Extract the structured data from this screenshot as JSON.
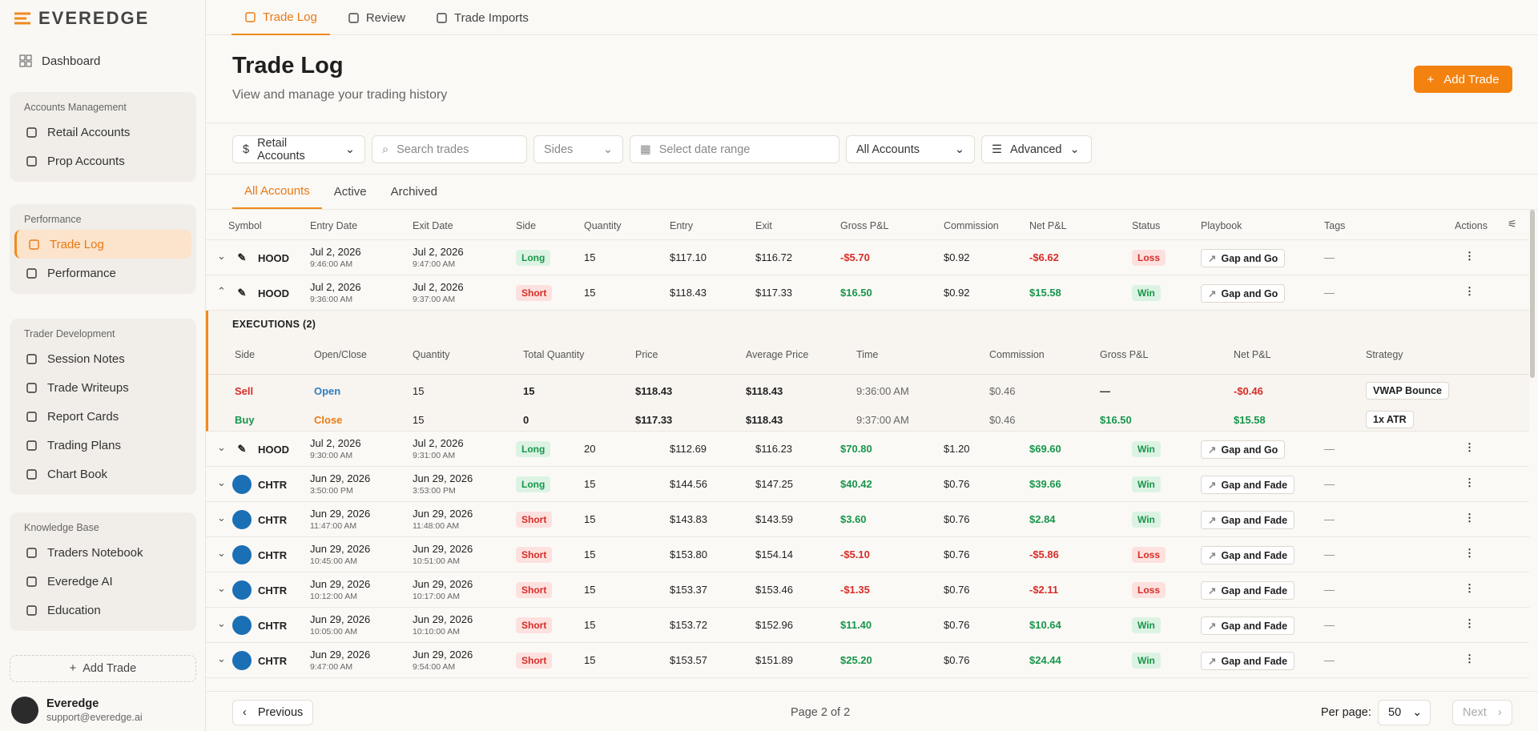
{
  "sidebar": {
    "logo": "EVEREDGE",
    "dashboard": "Dashboard",
    "groups": [
      {
        "title": "Accounts Management",
        "items": [
          "Retail Accounts",
          "Prop Accounts"
        ]
      },
      {
        "title": "Performance",
        "items": [
          "Trade Log",
          "Performance"
        ]
      },
      {
        "title": "Trader Development",
        "items": [
          "Session Notes",
          "Trade Writeups",
          "Report Cards",
          "Trading Plans",
          "Chart Book"
        ]
      },
      {
        "title": "Knowledge Base",
        "items": [
          "Traders Notebook",
          "Everedge AI",
          "Education"
        ]
      }
    ],
    "add_trade": "Add Trade",
    "user": {
      "name": "Everedge",
      "email": "support@everedge.ai"
    }
  },
  "tabs": [
    "Trade Log",
    "Review",
    "Trade Imports"
  ],
  "header": {
    "title": "Trade Log",
    "subtitle": "View and manage your trading history",
    "button": "Add Trade"
  },
  "filters": {
    "account_type": "Retail Accounts",
    "search": "Search trades",
    "sides": "Sides",
    "date_range": "Select date range",
    "accounts": "All Accounts",
    "advanced": "Advanced"
  },
  "sub_tabs": [
    "All Accounts",
    "Active",
    "Archived"
  ],
  "table": {
    "columns": [
      "Symbol",
      "Entry Date",
      "Exit Date",
      "Side",
      "Quantity",
      "Entry",
      "Exit",
      "Gross P&L",
      "Commission",
      "Net P&L",
      "Status",
      "Playbook",
      "Tags",
      "Actions"
    ],
    "rows": [
      {
        "symbol": "HOOD",
        "entry_date": "Jul 2, 2026",
        "entry_time": "9:46:00 AM",
        "exit_date": "Jul 2, 2026",
        "exit_time": "9:47:00 AM",
        "side": "Long",
        "quantity": "15",
        "entry": "$117.10",
        "exit": "$116.72",
        "gross": "-$5.70",
        "commission": "$0.92",
        "net": "-$6.62",
        "status": "Loss",
        "playbook": "Gap and Go",
        "tags": "—"
      },
      {
        "symbol": "HOOD",
        "entry_date": "Jul 2, 2026",
        "entry_time": "9:36:00 AM",
        "exit_date": "Jul 2, 2026",
        "exit_time": "9:37:00 AM",
        "side": "Short",
        "quantity": "15",
        "entry": "$118.43",
        "exit": "$117.33",
        "gross": "$16.50",
        "commission": "$0.92",
        "net": "$15.58",
        "status": "Win",
        "playbook": "Gap and Go",
        "tags": "—",
        "executions": {
          "title": "EXECUTIONS (2)",
          "columns": [
            "Side",
            "Open/Close",
            "Quantity",
            "Total Quantity",
            "Price",
            "Average Price",
            "Time",
            "Commission",
            "Gross P&L",
            "Net P&L",
            "Strategy"
          ],
          "rows": [
            [
              "Sell",
              "Open",
              "15",
              "15",
              "$118.43",
              "$118.43",
              "9:36:00 AM",
              "$0.46",
              "—",
              "-$0.46",
              "VWAP Bounce"
            ],
            [
              "Buy",
              "Close",
              "15",
              "0",
              "$117.33",
              "$118.43",
              "9:37:00 AM",
              "$0.46",
              "$16.50",
              "$15.58",
              "1x ATR"
            ]
          ]
        }
      },
      {
        "symbol": "HOOD",
        "entry_date": "Jul 2, 2026",
        "entry_time": "9:30:00 AM",
        "exit_date": "Jul 2, 2026",
        "exit_time": "9:31:00 AM",
        "side": "Long",
        "quantity": "20",
        "entry": "$112.69",
        "exit": "$116.23",
        "gross": "$70.80",
        "commission": "$1.20",
        "net": "$69.60",
        "status": "Win",
        "playbook": "Gap and Go",
        "tags": "—"
      },
      {
        "symbol": "CHTR",
        "entry_date": "Jun 29, 2026",
        "entry_time": "3:50:00 PM",
        "exit_date": "Jun 29, 2026",
        "exit_time": "3:53:00 PM",
        "side": "Long",
        "quantity": "15",
        "entry": "$144.56",
        "exit": "$147.25",
        "gross": "$40.42",
        "commission": "$0.76",
        "net": "$39.66",
        "status": "Win",
        "playbook": "Gap and Fade",
        "tags": "—"
      },
      {
        "symbol": "CHTR",
        "entry_date": "Jun 29, 2026",
        "entry_time": "11:47:00 AM",
        "exit_date": "Jun 29, 2026",
        "exit_time": "11:48:00 AM",
        "side": "Short",
        "quantity": "15",
        "entry": "$143.83",
        "exit": "$143.59",
        "gross": "$3.60",
        "commission": "$0.76",
        "net": "$2.84",
        "status": "Win",
        "playbook": "Gap and Fade",
        "tags": "—"
      },
      {
        "symbol": "CHTR",
        "entry_date": "Jun 29, 2026",
        "entry_time": "10:45:00 AM",
        "exit_date": "Jun 29, 2026",
        "exit_time": "10:51:00 AM",
        "side": "Short",
        "quantity": "15",
        "entry": "$153.80",
        "exit": "$154.14",
        "gross": "-$5.10",
        "commission": "$0.76",
        "net": "-$5.86",
        "status": "Loss",
        "playbook": "Gap and Fade",
        "tags": "—"
      },
      {
        "symbol": "CHTR",
        "entry_date": "Jun 29, 2026",
        "entry_time": "10:12:00 AM",
        "exit_date": "Jun 29, 2026",
        "exit_time": "10:17:00 AM",
        "side": "Short",
        "quantity": "15",
        "entry": "$153.37",
        "exit": "$153.46",
        "gross": "-$1.35",
        "commission": "$0.76",
        "net": "-$2.11",
        "status": "Loss",
        "playbook": "Gap and Fade",
        "tags": "—"
      },
      {
        "symbol": "CHTR",
        "entry_date": "Jun 29, 2026",
        "entry_time": "10:05:00 AM",
        "exit_date": "Jun 29, 2026",
        "exit_time": "10:10:00 AM",
        "side": "Short",
        "quantity": "15",
        "entry": "$153.72",
        "exit": "$152.96",
        "gross": "$11.40",
        "commission": "$0.76",
        "net": "$10.64",
        "status": "Win",
        "playbook": "Gap and Fade",
        "tags": "—"
      },
      {
        "symbol": "CHTR",
        "entry_date": "Jun 29, 2026",
        "entry_time": "9:47:00 AM",
        "exit_date": "Jun 29, 2026",
        "exit_time": "9:54:00 AM",
        "side": "Short",
        "quantity": "15",
        "entry": "$153.57",
        "exit": "$151.89",
        "gross": "$25.20",
        "commission": "$0.76",
        "net": "$24.44",
        "status": "Win",
        "playbook": "Gap and Fade",
        "tags": "—"
      }
    ]
  },
  "pagination": {
    "previous": "Previous",
    "page": "Page 2 of 2",
    "per_page_label": "Per page:",
    "per_page": "50",
    "next": "Next"
  }
}
